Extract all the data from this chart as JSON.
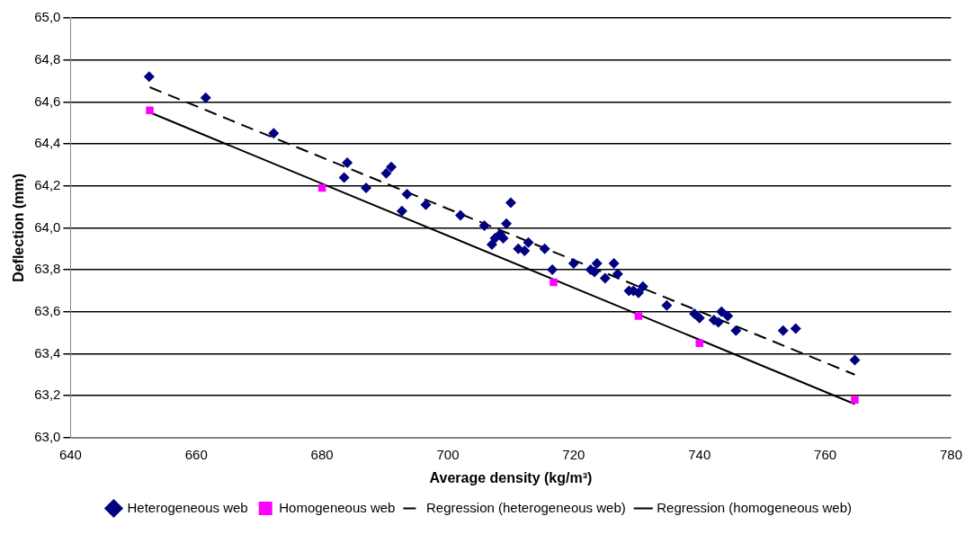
{
  "chart_data": {
    "type": "scatter",
    "xlabel": "Average density (kg/m³)",
    "ylabel": "Deflection (mm)",
    "xlim": [
      640,
      780
    ],
    "xticks": [
      640,
      660,
      680,
      700,
      720,
      740,
      760,
      780
    ],
    "ylim": [
      63.0,
      65.0
    ],
    "yticks": [
      {
        "value": 63.0,
        "label": "63,0"
      },
      {
        "value": 63.2,
        "label": "63,2"
      },
      {
        "value": 63.4,
        "label": "63,4"
      },
      {
        "value": 63.6,
        "label": "63,6"
      },
      {
        "value": 63.8,
        "label": "63,8"
      },
      {
        "value": 64.0,
        "label": "64,0"
      },
      {
        "value": 64.2,
        "label": "64,2"
      },
      {
        "value": 64.4,
        "label": "64,4"
      },
      {
        "value": 64.6,
        "label": "64,6"
      },
      {
        "value": 64.8,
        "label": "64,8"
      },
      {
        "value": 65.0,
        "label": "65,0"
      }
    ],
    "grid": "y",
    "legend": "bottom",
    "series": [
      {
        "name": "Heterogeneous web",
        "type": "scatter",
        "marker": "diamond",
        "color": "#000080",
        "x": [
          652.5,
          661.5,
          672.3,
          683.5,
          684,
          687,
          690.2,
          691,
          692.7,
          693.5,
          696.5,
          702,
          705.8,
          707,
          707.5,
          708.3,
          708.8,
          709.3,
          710,
          711.2,
          712.2,
          712.8,
          715.4,
          716.6,
          720,
          722.7,
          723.3,
          723.7,
          725,
          726.4,
          727,
          728.8,
          729.5,
          730.3,
          731,
          734.8,
          739.2,
          740,
          742.3,
          743,
          743.5,
          744.5,
          745.8,
          753.3,
          755.3,
          764.7
        ],
        "values": [
          64.72,
          64.62,
          64.45,
          64.24,
          64.31,
          64.19,
          64.26,
          64.29,
          64.08,
          64.16,
          64.11,
          64.06,
          64.01,
          63.92,
          63.95,
          63.97,
          63.95,
          64.02,
          64.12,
          63.9,
          63.89,
          63.93,
          63.9,
          63.8,
          63.83,
          63.8,
          63.79,
          63.83,
          63.76,
          63.83,
          63.78,
          63.7,
          63.7,
          63.69,
          63.72,
          63.63,
          63.59,
          63.57,
          63.56,
          63.55,
          63.6,
          63.58,
          63.51,
          63.51,
          63.52,
          63.37
        ]
      },
      {
        "name": "Homogeneous web",
        "type": "scatter",
        "marker": "square",
        "color": "#ff00ff",
        "x": [
          652.6,
          680,
          716.8,
          730.3,
          740,
          764.7
        ],
        "values": [
          64.56,
          64.19,
          63.74,
          63.58,
          63.45,
          63.18
        ]
      },
      {
        "name": "Regression (heterogeneous web)",
        "type": "line",
        "marker": "none",
        "line_style": "dashed",
        "color": "#000000",
        "x": [
          652.6,
          764.7
        ],
        "values": [
          64.67,
          63.3
        ]
      },
      {
        "name": "Regression (homogeneous web)",
        "type": "line",
        "marker": "none",
        "line_style": "solid",
        "color": "#000000",
        "x": [
          652.6,
          764.7
        ],
        "values": [
          64.55,
          63.16
        ]
      }
    ]
  }
}
